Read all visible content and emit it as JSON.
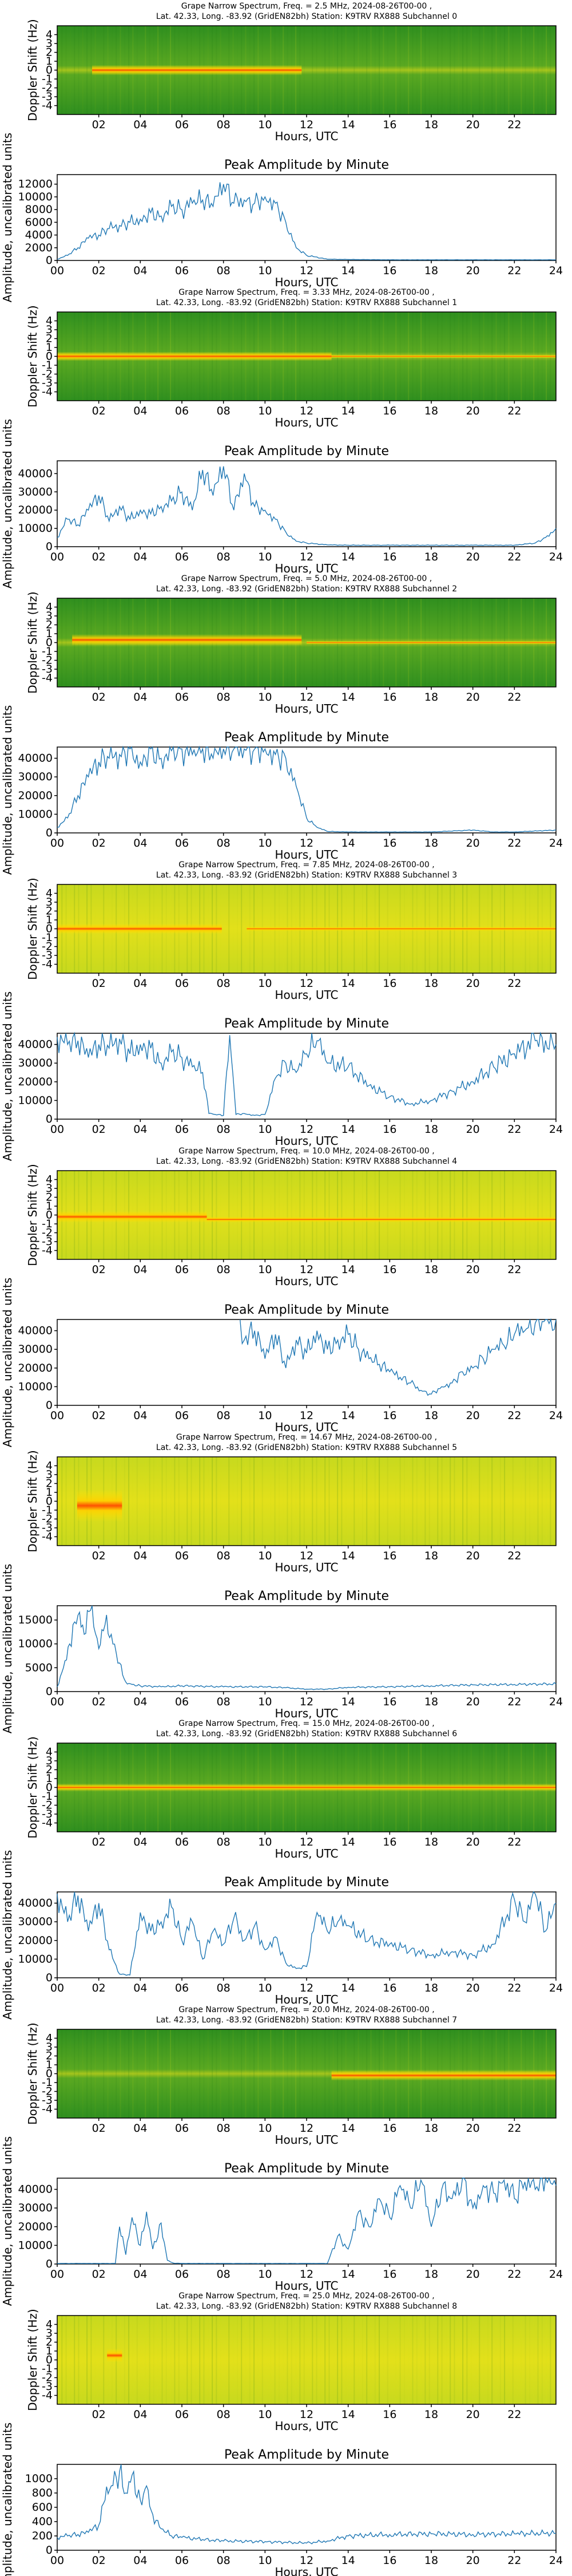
{
  "figure": {
    "spectrogram_xlabel": "Hours, UTC",
    "spectrogram_ylabel": "Doppler Shift (Hz)",
    "spectrogram_xticks": [
      "02",
      "04",
      "06",
      "08",
      "10",
      "12",
      "14",
      "16",
      "18",
      "20",
      "22"
    ],
    "spectrogram_yticks": [
      "4",
      "3",
      "2",
      "1",
      "0",
      "-1",
      "-2",
      "-3",
      "-4"
    ],
    "amp_title": "Peak Amplitude by Minute",
    "amp_ylabel": "Amplitude, uncalibrated units",
    "amp_xlabel": "Hours, UTC",
    "amp_xticks": [
      "00",
      "02",
      "04",
      "06",
      "08",
      "10",
      "12",
      "14",
      "16",
      "18",
      "20",
      "22",
      "24"
    ],
    "line_color": "#1f77b4"
  },
  "chart_data": [
    {
      "type": "heatmap",
      "title_line1": "Grape Narrow Spectrum, Freq. = 2.5 MHz, 2024-08-26T00-00 ,",
      "title_line2": "Lat.  42.33, Long. -83.92 (GridEN82bh) Station: K9TRV RX888 Subchannel 0",
      "xlabel": "Hours, UTC",
      "ylabel": "Doppler Shift (Hz)",
      "xlim": [
        0,
        24
      ],
      "ylim": [
        -5,
        5
      ]
    },
    {
      "type": "line",
      "title": "Peak Amplitude by Minute",
      "xlabel": "Hours, UTC",
      "ylabel": "Amplitude, uncalibrated units",
      "xlim": [
        0,
        24
      ],
      "ylim": [
        0,
        13500
      ],
      "yticks": [
        0,
        2000,
        4000,
        6000,
        8000,
        10000,
        12000
      ],
      "x": [
        0,
        0.5,
        1,
        1.5,
        2,
        2.5,
        3,
        3.5,
        4,
        4.5,
        5,
        5.5,
        6,
        6.5,
        7,
        7.5,
        8,
        8.5,
        9,
        9.5,
        10,
        10.5,
        11,
        11.5,
        12,
        13,
        14,
        16,
        18,
        20,
        22,
        24
      ],
      "values": [
        200,
        800,
        2000,
        3500,
        4000,
        5000,
        5500,
        6000,
        6500,
        7500,
        7000,
        8500,
        8000,
        9000,
        9500,
        8500,
        12000,
        9000,
        9500,
        9000,
        10000,
        9000,
        6000,
        2000,
        800,
        200,
        150,
        100,
        100,
        100,
        100,
        100
      ]
    },
    {
      "type": "heatmap",
      "title_line1": "Grape Narrow Spectrum, Freq. = 3.33 MHz, 2024-08-26T00-00 ,",
      "title_line2": "Lat.  42.33, Long. -83.92 (GridEN82bh) Station: K9TRV RX888 Subchannel 1",
      "xlabel": "Hours, UTC",
      "ylabel": "Doppler Shift (Hz)",
      "xlim": [
        0,
        24
      ],
      "ylim": [
        -5,
        5
      ]
    },
    {
      "type": "line",
      "title": "Peak Amplitude by Minute",
      "xlabel": "Hours, UTC",
      "ylabel": "Amplitude, uncalibrated units",
      "xlim": [
        0,
        24
      ],
      "ylim": [
        0,
        47000
      ],
      "yticks": [
        0,
        10000,
        20000,
        30000,
        40000
      ],
      "x": [
        0,
        0.5,
        1,
        1.5,
        2,
        2.5,
        3,
        3.5,
        4,
        4.5,
        5,
        5.5,
        6,
        6.5,
        7,
        7.5,
        8,
        8.5,
        9,
        9.5,
        10,
        10.5,
        11,
        11.5,
        12,
        13,
        14,
        16,
        18,
        20,
        22,
        23,
        23.5,
        24
      ],
      "values": [
        5000,
        15000,
        12000,
        20000,
        28000,
        14000,
        22000,
        15000,
        20000,
        18000,
        22000,
        25000,
        30000,
        20000,
        42000,
        28000,
        44000,
        20000,
        40000,
        22000,
        20000,
        15000,
        8000,
        3000,
        2000,
        1000,
        800,
        800,
        800,
        800,
        800,
        2000,
        5000,
        10000
      ]
    },
    {
      "type": "heatmap",
      "title_line1": "Grape Narrow Spectrum, Freq. = 5.0 MHz, 2024-08-26T00-00 ,",
      "title_line2": "Lat.  42.33, Long. -83.92 (GridEN82bh) Station: K9TRV RX888 Subchannel 2",
      "xlabel": "Hours, UTC",
      "ylabel": "Doppler Shift (Hz)",
      "xlim": [
        0,
        24
      ],
      "ylim": [
        -5,
        5
      ]
    },
    {
      "type": "line",
      "title": "Peak Amplitude by Minute",
      "xlabel": "Hours, UTC",
      "ylabel": "Amplitude, uncalibrated units",
      "xlim": [
        0,
        24
      ],
      "ylim": [
        0,
        46000
      ],
      "yticks": [
        0,
        10000,
        20000,
        30000,
        40000
      ],
      "x": [
        0,
        0.5,
        1,
        1.5,
        2,
        2.5,
        3,
        3.5,
        4,
        4.5,
        5,
        5.5,
        6,
        6.5,
        7,
        7.5,
        8,
        8.5,
        9,
        9.5,
        10,
        10.5,
        11,
        11.5,
        12,
        12.5,
        13,
        14,
        16,
        18,
        20,
        21,
        22,
        24
      ],
      "values": [
        3000,
        8000,
        20000,
        30000,
        38000,
        40000,
        42000,
        45000,
        38000,
        45000,
        40000,
        44000,
        45000,
        42000,
        45000,
        40000,
        45000,
        45000,
        45000,
        45000,
        45000,
        42000,
        40000,
        25000,
        8000,
        3000,
        800,
        500,
        500,
        500,
        1500,
        500,
        500,
        1500
      ]
    },
    {
      "type": "heatmap",
      "title_line1": "Grape Narrow Spectrum, Freq. = 7.85 MHz, 2024-08-26T00-00 ,",
      "title_line2": "Lat.  42.33, Long. -83.92 (GridEN82bh) Station: K9TRV RX888 Subchannel 3",
      "xlabel": "Hours, UTC",
      "ylabel": "Doppler Shift (Hz)",
      "xlim": [
        0,
        24
      ],
      "ylim": [
        -5,
        5
      ]
    },
    {
      "type": "line",
      "title": "Peak Amplitude by Minute",
      "xlabel": "Hours, UTC",
      "ylabel": "Amplitude, uncalibrated units",
      "xlim": [
        0,
        24
      ],
      "ylim": [
        0,
        46000
      ],
      "yticks": [
        0,
        10000,
        20000,
        30000,
        40000
      ],
      "x": [
        0,
        0.5,
        1,
        1.5,
        2,
        2.5,
        3,
        3.5,
        4,
        4.5,
        5,
        5.5,
        6,
        6.5,
        7,
        7.3,
        7.6,
        8,
        8.3,
        8.6,
        9,
        9.5,
        10,
        10.5,
        11,
        11.5,
        12,
        12.5,
        13,
        14,
        15,
        16,
        17,
        18,
        19,
        20,
        21,
        22,
        23,
        24
      ],
      "values": [
        44000,
        40000,
        42000,
        33000,
        40000,
        38000,
        43000,
        35000,
        40000,
        38000,
        30000,
        36000,
        33000,
        28000,
        25000,
        3000,
        2500,
        2000,
        45000,
        2500,
        3000,
        2000,
        2500,
        22000,
        30000,
        25000,
        35000,
        42000,
        30000,
        28000,
        18000,
        12000,
        8000,
        10000,
        15000,
        20000,
        28000,
        35000,
        42000,
        40000
      ]
    },
    {
      "type": "heatmap",
      "title_line1": "Grape Narrow Spectrum, Freq. = 10.0 MHz, 2024-08-26T00-00 ,",
      "title_line2": "Lat.  42.33, Long. -83.92 (GridEN82bh) Station: K9TRV RX888 Subchannel 4",
      "xlabel": "Hours, UTC",
      "ylabel": "Doppler Shift (Hz)",
      "xlim": [
        0,
        24
      ],
      "ylim": [
        -5,
        5
      ]
    },
    {
      "type": "line",
      "title": "Peak Amplitude by Minute",
      "xlabel": "Hours, UTC",
      "ylabel": "Amplitude, uncalibrated units",
      "xlim": [
        0,
        24
      ],
      "ylim": [
        0,
        46000
      ],
      "yticks": [
        0,
        10000,
        20000,
        30000,
        40000
      ],
      "x": [
        8.8,
        9,
        9.5,
        10,
        10.5,
        11,
        11.5,
        12,
        12.5,
        13,
        13.5,
        14,
        14.5,
        15,
        15.5,
        16,
        16.5,
        17,
        17.5,
        18,
        18.5,
        19,
        19.5,
        20,
        20.5,
        21,
        21.5,
        22,
        22.5,
        23,
        23.5,
        24
      ],
      "values": [
        46000,
        35000,
        40000,
        25000,
        38000,
        20000,
        35000,
        28000,
        40000,
        30000,
        35000,
        38000,
        30000,
        25000,
        22000,
        18000,
        15000,
        12000,
        8000,
        6000,
        10000,
        12000,
        18000,
        20000,
        25000,
        30000,
        32000,
        38000,
        40000,
        44000,
        46000,
        46000
      ]
    },
    {
      "type": "heatmap",
      "title_line1": "Grape Narrow Spectrum, Freq. = 14.67 MHz, 2024-08-26T00-00 ,",
      "title_line2": "Lat.  42.33, Long. -83.92 (GridEN82bh) Station: K9TRV RX888 Subchannel 5",
      "xlabel": "Hours, UTC",
      "ylabel": "Doppler Shift (Hz)",
      "xlim": [
        0,
        24
      ],
      "ylim": [
        -5,
        5
      ]
    },
    {
      "type": "line",
      "title": "Peak Amplitude by Minute",
      "xlabel": "Hours, UTC",
      "ylabel": "Amplitude, uncalibrated units",
      "xlim": [
        0,
        24
      ],
      "ylim": [
        0,
        18000
      ],
      "yticks": [
        0,
        5000,
        10000,
        15000
      ],
      "x": [
        0,
        0.3,
        0.6,
        1,
        1.3,
        1.6,
        2,
        2.3,
        2.6,
        3,
        3.3,
        3.6,
        4,
        5,
        6,
        8,
        10,
        11,
        12,
        13,
        14,
        16,
        18,
        20,
        22,
        24
      ],
      "values": [
        1000,
        5000,
        10000,
        16000,
        12000,
        17000,
        9000,
        14000,
        12000,
        6000,
        2000,
        1500,
        1200,
        1000,
        1200,
        1000,
        1000,
        800,
        500,
        500,
        900,
        1000,
        1200,
        1400,
        1500,
        1600
      ]
    },
    {
      "type": "heatmap",
      "title_line1": "Grape Narrow Spectrum, Freq. = 15.0 MHz, 2024-08-26T00-00 ,",
      "title_line2": "Lat.  42.33, Long. -83.92 (GridEN82bh) Station: K9TRV RX888 Subchannel 6",
      "xlabel": "Hours, UTC",
      "ylabel": "Doppler Shift (Hz)",
      "xlim": [
        0,
        24
      ],
      "ylim": [
        -5,
        5
      ]
    },
    {
      "type": "line",
      "title": "Peak Amplitude by Minute",
      "xlabel": "Hours, UTC",
      "ylabel": "Amplitude, uncalibrated units",
      "xlim": [
        0,
        24
      ],
      "ylim": [
        0,
        46000
      ],
      "yticks": [
        0,
        10000,
        20000,
        30000,
        40000
      ],
      "x": [
        0,
        0.5,
        1,
        1.5,
        2,
        2.5,
        3,
        3.5,
        4,
        4.5,
        5,
        5.5,
        6,
        6.5,
        7,
        7.5,
        8,
        8.5,
        9,
        9.5,
        10,
        10.5,
        11,
        11.5,
        12,
        12.5,
        13,
        13.5,
        14,
        15,
        16,
        17,
        18,
        19,
        20,
        21,
        22,
        22.5,
        23,
        23.5,
        24
      ],
      "values": [
        45000,
        30000,
        44000,
        25000,
        40000,
        15000,
        2000,
        1500,
        35000,
        25000,
        30000,
        38000,
        20000,
        30000,
        10000,
        25000,
        18000,
        32000,
        20000,
        28000,
        15000,
        22000,
        8000,
        5000,
        6000,
        35000,
        25000,
        30000,
        28000,
        20000,
        18000,
        15000,
        12000,
        14000,
        12000,
        18000,
        42000,
        30000,
        45000,
        25000,
        40000
      ]
    },
    {
      "type": "heatmap",
      "title_line1": "Grape Narrow Spectrum, Freq. = 20.0 MHz, 2024-08-26T00-00 ,",
      "title_line2": "Lat.  42.33, Long. -83.92 (GridEN82bh) Station: K9TRV RX888 Subchannel 7",
      "xlabel": "Hours, UTC",
      "ylabel": "Doppler Shift (Hz)",
      "xlim": [
        0,
        24
      ],
      "ylim": [
        -5,
        5
      ]
    },
    {
      "type": "line",
      "title": "Peak Amplitude by Minute",
      "xlabel": "Hours, UTC",
      "ylabel": "Amplitude, uncalibrated units",
      "xlim": [
        0,
        24
      ],
      "ylim": [
        0,
        46000
      ],
      "yticks": [
        0,
        10000,
        20000,
        30000,
        40000
      ],
      "x": [
        0,
        1,
        2,
        2.8,
        3,
        3.3,
        3.6,
        4,
        4.3,
        4.6,
        5,
        5.3,
        5.6,
        6,
        7,
        8,
        10,
        12,
        13,
        13.5,
        14,
        14.5,
        15,
        15.5,
        16,
        16.5,
        17,
        17.5,
        18,
        18.5,
        19,
        19.5,
        20,
        20.5,
        21,
        21.5,
        22,
        22.5,
        23,
        23.5,
        24
      ],
      "values": [
        300,
        300,
        300,
        300,
        20000,
        5000,
        25000,
        10000,
        28000,
        8000,
        22000,
        2000,
        500,
        300,
        300,
        300,
        300,
        300,
        300,
        15000,
        8000,
        28000,
        20000,
        35000,
        25000,
        42000,
        30000,
        45000,
        20000,
        40000,
        35000,
        46000,
        30000,
        42000,
        38000,
        45000,
        35000,
        44000,
        40000,
        46000,
        42000
      ]
    },
    {
      "type": "heatmap",
      "title_line1": "Grape Narrow Spectrum, Freq. = 25.0 MHz, 2024-08-26T00-00 ,",
      "title_line2": "Lat.  42.33, Long. -83.92 (GridEN82bh) Station: K9TRV RX888 Subchannel 8",
      "xlabel": "Hours, UTC",
      "ylabel": "Doppler Shift (Hz)",
      "xlim": [
        0,
        24
      ],
      "ylim": [
        -5,
        5
      ]
    },
    {
      "type": "line",
      "title": "Peak Amplitude by Minute",
      "xlabel": "Hours, UTC",
      "ylabel": "Amplitude, uncalibrated units",
      "xlim": [
        0,
        24
      ],
      "ylim": [
        0,
        1200
      ],
      "yticks": [
        0,
        200,
        400,
        600,
        800,
        1000
      ],
      "x": [
        0,
        0.5,
        1,
        1.5,
        2,
        2.3,
        2.6,
        3,
        3.3,
        3.6,
        4,
        4.3,
        4.6,
        5,
        5.5,
        6,
        7,
        8,
        10,
        12,
        13,
        14,
        16,
        18,
        20,
        22,
        24
      ],
      "values": [
        180,
        200,
        220,
        250,
        350,
        700,
        900,
        1100,
        800,
        1050,
        700,
        900,
        500,
        300,
        200,
        180,
        150,
        130,
        120,
        100,
        130,
        200,
        220,
        230,
        220,
        230,
        240
      ]
    }
  ]
}
